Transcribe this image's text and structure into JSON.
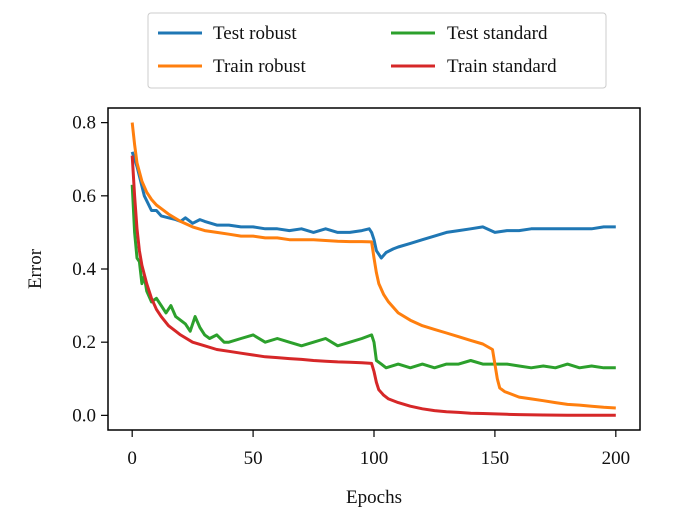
{
  "chart_data": {
    "type": "line",
    "title": "",
    "xlabel": "Epochs",
    "ylabel": "Error",
    "xlim": [
      -10,
      210
    ],
    "ylim": [
      -0.04,
      0.84
    ],
    "xticks": [
      0,
      50,
      100,
      150,
      200
    ],
    "xtick_labels": [
      "0",
      "50",
      "100",
      "150",
      "200"
    ],
    "yticks": [
      0.0,
      0.2,
      0.4,
      0.6,
      0.8
    ],
    "ytick_labels": [
      "0.0",
      "0.2",
      "0.4",
      "0.6",
      "0.8"
    ],
    "grid": false,
    "legend_position": "top-center",
    "series": [
      {
        "name": "Test robust",
        "color": "#1f77b4",
        "x": [
          0,
          2,
          5,
          8,
          10,
          12,
          15,
          18,
          20,
          22,
          25,
          28,
          30,
          35,
          40,
          45,
          50,
          55,
          60,
          65,
          70,
          75,
          80,
          85,
          90,
          95,
          98,
          99,
          100,
          101,
          103,
          105,
          108,
          110,
          115,
          120,
          125,
          130,
          135,
          140,
          145,
          150,
          155,
          160,
          165,
          170,
          175,
          180,
          185,
          190,
          195,
          200
        ],
        "y": [
          0.72,
          0.68,
          0.6,
          0.56,
          0.56,
          0.545,
          0.54,
          0.535,
          0.53,
          0.54,
          0.525,
          0.535,
          0.53,
          0.52,
          0.52,
          0.515,
          0.515,
          0.51,
          0.51,
          0.505,
          0.51,
          0.5,
          0.51,
          0.5,
          0.5,
          0.505,
          0.51,
          0.5,
          0.48,
          0.45,
          0.43,
          0.445,
          0.455,
          0.46,
          0.47,
          0.48,
          0.49,
          0.5,
          0.505,
          0.51,
          0.515,
          0.5,
          0.505,
          0.505,
          0.51,
          0.51,
          0.51,
          0.51,
          0.51,
          0.51,
          0.515,
          0.515
        ]
      },
      {
        "name": "Train robust",
        "color": "#ff7f0e",
        "x": [
          0,
          1,
          2,
          4,
          6,
          8,
          10,
          12,
          15,
          20,
          25,
          30,
          35,
          40,
          45,
          50,
          55,
          60,
          65,
          70,
          75,
          80,
          85,
          90,
          95,
          99,
          100,
          101,
          102,
          104,
          106,
          110,
          115,
          120,
          125,
          130,
          135,
          140,
          145,
          149,
          150,
          151,
          152,
          154,
          156,
          160,
          165,
          170,
          175,
          180,
          185,
          190,
          195,
          200
        ],
        "y": [
          0.8,
          0.74,
          0.69,
          0.64,
          0.61,
          0.59,
          0.575,
          0.565,
          0.55,
          0.53,
          0.515,
          0.505,
          0.5,
          0.495,
          0.49,
          0.49,
          0.485,
          0.485,
          0.48,
          0.48,
          0.48,
          0.478,
          0.476,
          0.475,
          0.475,
          0.474,
          0.43,
          0.39,
          0.36,
          0.33,
          0.31,
          0.28,
          0.26,
          0.245,
          0.235,
          0.225,
          0.215,
          0.205,
          0.195,
          0.18,
          0.14,
          0.1,
          0.075,
          0.065,
          0.06,
          0.05,
          0.045,
          0.04,
          0.035,
          0.03,
          0.028,
          0.025,
          0.022,
          0.02
        ]
      },
      {
        "name": "Test standard",
        "color": "#2ca02c",
        "x": [
          0,
          1,
          2,
          3,
          4,
          5,
          6,
          8,
          10,
          12,
          14,
          16,
          18,
          20,
          22,
          24,
          26,
          28,
          30,
          32,
          35,
          38,
          40,
          45,
          50,
          55,
          60,
          65,
          70,
          75,
          80,
          85,
          90,
          95,
          99,
          100,
          101,
          103,
          105,
          110,
          115,
          120,
          125,
          130,
          135,
          140,
          145,
          150,
          155,
          160,
          165,
          170,
          175,
          180,
          185,
          190,
          195,
          200
        ],
        "y": [
          0.63,
          0.5,
          0.43,
          0.42,
          0.36,
          0.38,
          0.34,
          0.31,
          0.32,
          0.3,
          0.28,
          0.3,
          0.27,
          0.26,
          0.25,
          0.23,
          0.27,
          0.24,
          0.22,
          0.21,
          0.22,
          0.2,
          0.2,
          0.21,
          0.22,
          0.2,
          0.21,
          0.2,
          0.19,
          0.2,
          0.21,
          0.19,
          0.2,
          0.21,
          0.22,
          0.2,
          0.15,
          0.14,
          0.13,
          0.14,
          0.13,
          0.14,
          0.13,
          0.14,
          0.14,
          0.15,
          0.14,
          0.14,
          0.14,
          0.135,
          0.13,
          0.135,
          0.13,
          0.14,
          0.13,
          0.135,
          0.13,
          0.13
        ]
      },
      {
        "name": "Train standard",
        "color": "#d62728",
        "x": [
          0,
          1,
          2,
          3,
          4,
          6,
          8,
          10,
          12,
          15,
          18,
          20,
          25,
          30,
          35,
          40,
          45,
          50,
          55,
          60,
          65,
          70,
          75,
          80,
          85,
          90,
          95,
          99,
          100,
          101,
          102,
          104,
          106,
          110,
          115,
          120,
          125,
          130,
          135,
          140,
          145,
          150,
          155,
          160,
          170,
          180,
          190,
          200
        ],
        "y": [
          0.71,
          0.6,
          0.51,
          0.45,
          0.41,
          0.36,
          0.32,
          0.29,
          0.27,
          0.245,
          0.23,
          0.22,
          0.2,
          0.19,
          0.18,
          0.175,
          0.17,
          0.165,
          0.16,
          0.158,
          0.155,
          0.153,
          0.15,
          0.148,
          0.146,
          0.145,
          0.144,
          0.142,
          0.12,
          0.09,
          0.07,
          0.055,
          0.045,
          0.035,
          0.025,
          0.018,
          0.013,
          0.01,
          0.008,
          0.006,
          0.005,
          0.004,
          0.003,
          0.002,
          0.001,
          0.0005,
          0.0003,
          0.0002
        ]
      }
    ]
  }
}
